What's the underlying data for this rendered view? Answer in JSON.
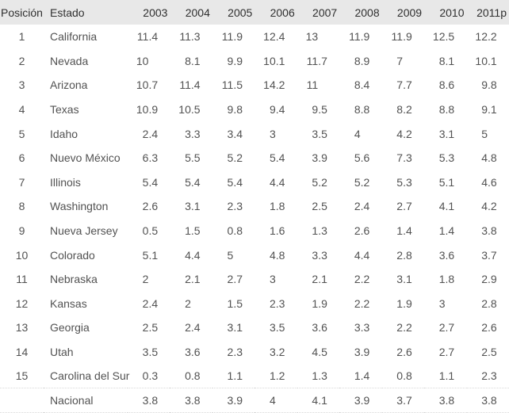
{
  "chart_data": {
    "type": "table",
    "columns": [
      "Posición",
      "Estado",
      "2003",
      "2004",
      "2005",
      "2006",
      "2007",
      "2008",
      "2009",
      "2010",
      "2011p"
    ],
    "rows": [
      {
        "position": "1",
        "state": "California",
        "values": [
          "11.4",
          "11.3",
          "11.9",
          "12.4",
          "13",
          "11.9",
          "11.9",
          "12.5",
          "12.2"
        ]
      },
      {
        "position": "2",
        "state": "Nevada",
        "values": [
          "10",
          "8.1",
          "9.9",
          "10.1",
          "11.7",
          "8.9",
          "7",
          "8.1",
          "10.1"
        ]
      },
      {
        "position": "3",
        "state": "Arizona",
        "values": [
          "10.7",
          "11.4",
          "11.5",
          "14.2",
          "11",
          "8.4",
          "7.7",
          "8.6",
          "9.8"
        ]
      },
      {
        "position": "4",
        "state": "Texas",
        "values": [
          "10.9",
          "10.5",
          "9.8",
          "9.4",
          "9.5",
          "8.8",
          "8.2",
          "8.8",
          "9.1"
        ]
      },
      {
        "position": "5",
        "state": "Idaho",
        "values": [
          "2.4",
          "3.3",
          "3.4",
          "3",
          "3.5",
          "4",
          "4.2",
          "3.1",
          "5"
        ]
      },
      {
        "position": "6",
        "state": "Nuevo México",
        "values": [
          "6.3",
          "5.5",
          "5.2",
          "5.4",
          "3.9",
          "5.6",
          "7.3",
          "5.3",
          "4.8"
        ]
      },
      {
        "position": "7",
        "state": "Illinois",
        "values": [
          "5.4",
          "5.4",
          "5.4",
          "4.4",
          "5.2",
          "5.2",
          "5.3",
          "5.1",
          "4.6"
        ]
      },
      {
        "position": "8",
        "state": "Washington",
        "values": [
          "2.6",
          "3.1",
          "2.3",
          "1.8",
          "2.5",
          "2.4",
          "2.7",
          "4.1",
          "4.2"
        ]
      },
      {
        "position": "9",
        "state": "Nueva Jersey",
        "values": [
          "0.5",
          "1.5",
          "0.8",
          "1.6",
          "1.3",
          "2.6",
          "1.4",
          "1.4",
          "3.8"
        ]
      },
      {
        "position": "10",
        "state": "Colorado",
        "values": [
          "5.1",
          "4.4",
          "5",
          "4.8",
          "3.3",
          "4.4",
          "2.8",
          "3.6",
          "3.7"
        ]
      },
      {
        "position": "11",
        "state": "Nebraska",
        "values": [
          "2",
          "2.1",
          "2.7",
          "3",
          "2.1",
          "2.2",
          "3.1",
          "1.8",
          "2.9"
        ]
      },
      {
        "position": "12",
        "state": "Kansas",
        "values": [
          "2.4",
          "2",
          "1.5",
          "2.3",
          "1.9",
          "2.2",
          "1.9",
          "3",
          "2.8"
        ]
      },
      {
        "position": "13",
        "state": "Georgia",
        "values": [
          "2.5",
          "2.4",
          "3.1",
          "3.5",
          "3.6",
          "3.3",
          "2.2",
          "2.7",
          "2.6"
        ]
      },
      {
        "position": "14",
        "state": "Utah",
        "values": [
          "3.5",
          "3.6",
          "2.3",
          "3.2",
          "4.5",
          "3.9",
          "2.6",
          "2.7",
          "2.5"
        ]
      },
      {
        "position": "15",
        "state": "Carolina del Sur",
        "values": [
          "0.3",
          "0.8",
          "1.1",
          "1.2",
          "1.3",
          "1.4",
          "0.8",
          "1.1",
          "2.3"
        ]
      },
      {
        "position": "",
        "state": "Nacional",
        "values": [
          "3.8",
          "3.8",
          "3.9",
          "4",
          "4.1",
          "3.9",
          "3.7",
          "3.8",
          "3.8"
        ]
      }
    ]
  },
  "colors": {
    "header_bg": "#e8e8e8",
    "header_text": "#2f2f2f",
    "body_text": "#525252",
    "separator": "#d9d9d9"
  }
}
